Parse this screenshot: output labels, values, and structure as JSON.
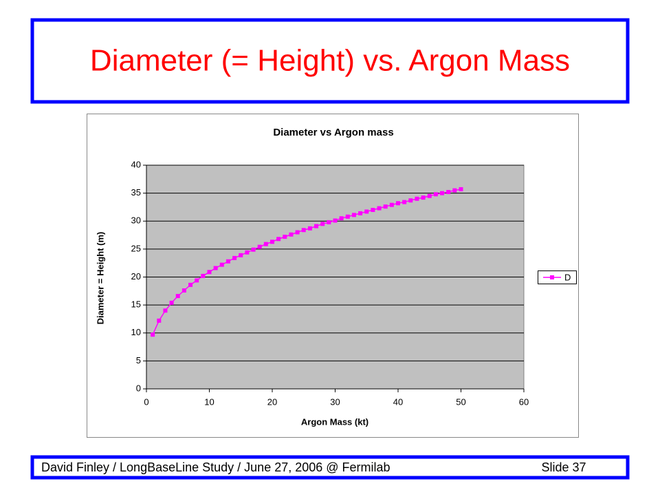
{
  "slide": {
    "title": "Diameter (= Height) vs. Argon Mass",
    "footer": {
      "left": "David Finley / LongBaseLine Study / June 27, 2006 @ Fermilab",
      "right": "Slide 37"
    }
  },
  "chart_data": {
    "type": "line",
    "title": "Diameter vs Argon mass",
    "x_label": "Argon Mass (kt)",
    "y_label": "Diameter = Height (m)",
    "x": [
      1,
      2,
      3,
      4,
      5,
      6,
      7,
      8,
      9,
      10,
      11,
      12,
      13,
      14,
      15,
      16,
      17,
      18,
      19,
      20,
      21,
      22,
      23,
      24,
      25,
      26,
      27,
      28,
      29,
      30,
      31,
      32,
      33,
      34,
      35,
      36,
      37,
      38,
      39,
      40,
      41,
      42,
      43,
      44,
      45,
      46,
      47,
      48,
      49,
      50
    ],
    "series": [
      {
        "name": "D",
        "color": "#ff00ff",
        "values": [
          9.7,
          12.2,
          14.0,
          15.4,
          16.6,
          17.6,
          18.6,
          19.4,
          20.2,
          20.9,
          21.6,
          22.2,
          22.8,
          23.4,
          23.9,
          24.4,
          24.9,
          25.4,
          25.9,
          26.3,
          26.8,
          27.2,
          27.6,
          28.0,
          28.4,
          28.7,
          29.1,
          29.5,
          29.8,
          30.1,
          30.5,
          30.8,
          31.1,
          31.4,
          31.7,
          32.0,
          32.3,
          32.6,
          32.9,
          33.2,
          33.4,
          33.7,
          34.0,
          34.2,
          34.5,
          34.8,
          35.0,
          35.2,
          35.5,
          35.7
        ]
      }
    ],
    "xlim": [
      0,
      60
    ],
    "xticks": [
      0,
      10,
      20,
      30,
      40,
      50,
      60
    ],
    "ylim": [
      0,
      40
    ],
    "yticks": [
      0,
      5,
      10,
      15,
      20,
      25,
      30,
      35,
      40
    ],
    "grid": true,
    "legend": "right"
  }
}
